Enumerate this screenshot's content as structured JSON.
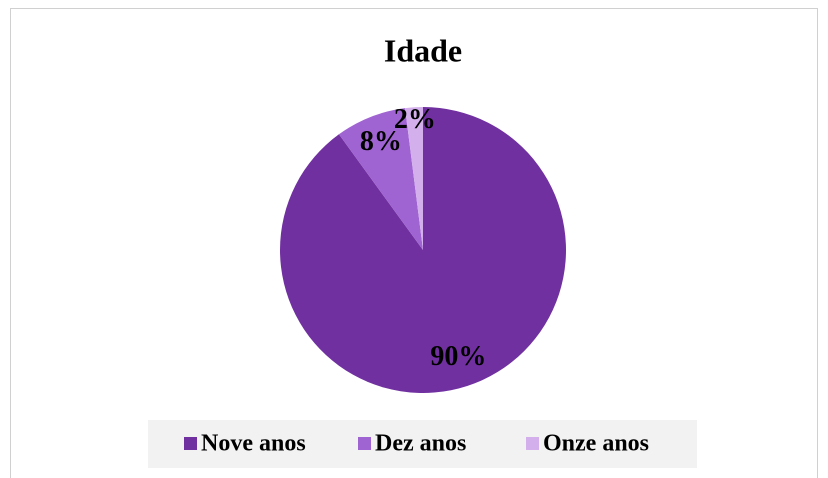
{
  "chart_data": {
    "type": "pie",
    "title": "Idade",
    "categories": [
      "Nove anos",
      "Dez anos",
      "Onze anos"
    ],
    "values": [
      90,
      8,
      2
    ],
    "value_labels": [
      "90%",
      "8%",
      "2%"
    ],
    "colors": [
      "#7030a0",
      "#a064d2",
      "#d3b0ec"
    ],
    "legend": "bottom"
  }
}
